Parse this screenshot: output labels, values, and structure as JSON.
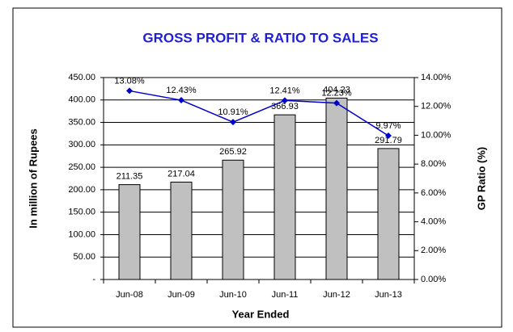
{
  "chart_data": {
    "type": "bar_line",
    "title": "GROSS PROFIT & RATIO TO SALES",
    "x_label": "Year Ended",
    "y_label": "In million of Rupees",
    "y2_label": "GP Ratio (%)",
    "categories": [
      "Jun-08",
      "Jun-09",
      "Jun-10",
      "Jun-11",
      "Jun-12",
      "Jun-13"
    ],
    "series": [
      {
        "name": "Gross Profit",
        "type": "bar",
        "color": "#c0c0c0",
        "values": [
          211.35,
          217.04,
          265.92,
          366.93,
          404.23,
          291.79
        ]
      },
      {
        "name": "GP Ratio",
        "type": "line",
        "axis": "y2",
        "color": "#0000cc",
        "values": [
          13.08,
          12.43,
          10.91,
          12.41,
          12.23,
          9.97
        ],
        "value_labels": [
          "13.08%",
          "12.43%",
          "10.91%",
          "12.41%",
          "12.23%",
          "9.97%"
        ]
      }
    ],
    "ylim": [
      0,
      450
    ],
    "yticks": [
      {
        "value": 0,
        "label": "-"
      },
      {
        "value": 50,
        "label": "50.00"
      },
      {
        "value": 100,
        "label": "100.00"
      },
      {
        "value": 150,
        "label": "150.00"
      },
      {
        "value": 200,
        "label": "200.00"
      },
      {
        "value": 250,
        "label": "250.00"
      },
      {
        "value": 300,
        "label": "300.00"
      },
      {
        "value": 350,
        "label": "350.00"
      },
      {
        "value": 400,
        "label": "400.00"
      },
      {
        "value": 450,
        "label": "450.00"
      }
    ],
    "y2lim": [
      0,
      14
    ],
    "y2ticks": [
      {
        "value": 0,
        "label": "0.00%"
      },
      {
        "value": 2,
        "label": "2.00%"
      },
      {
        "value": 4,
        "label": "4.00%"
      },
      {
        "value": 6,
        "label": "6.00%"
      },
      {
        "value": 8,
        "label": "8.00%"
      },
      {
        "value": 10,
        "label": "10.00%"
      },
      {
        "value": 12,
        "label": "12.00%"
      },
      {
        "value": 14,
        "label": "14.00%"
      }
    ],
    "grid": true
  }
}
